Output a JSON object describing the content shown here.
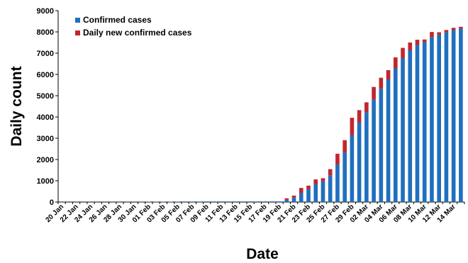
{
  "chart_data": {
    "type": "bar",
    "stacked": true,
    "xlabel": "Date",
    "ylabel": "Daily count",
    "ylim": [
      0,
      9000
    ],
    "yticks": [
      0,
      1000,
      2000,
      3000,
      4000,
      5000,
      6000,
      7000,
      8000,
      9000
    ],
    "grid": false,
    "legend_position": "top-left",
    "colors": {
      "confirmed": "#1f6fbf",
      "daily_new": "#c0272d"
    },
    "categories": [
      "20 Jan",
      "21 Jan",
      "22 Jan",
      "23 Jan",
      "24 Jan",
      "25 Jan",
      "26 Jan",
      "27 Jan",
      "28 Jan",
      "29 Jan",
      "30 Jan",
      "31 Jan",
      "01 Feb",
      "02 Feb",
      "03 Feb",
      "04 Feb",
      "05 Feb",
      "06 Feb",
      "07 Feb",
      "08 Feb",
      "09 Feb",
      "10 Feb",
      "11 Feb",
      "12 Feb",
      "13 Feb",
      "14 Feb",
      "15 Feb",
      "16 Feb",
      "17 Feb",
      "18 Feb",
      "19 Feb",
      "20 Feb",
      "21 Feb",
      "22 Feb",
      "23 Feb",
      "24 Feb",
      "25 Feb",
      "26 Feb",
      "27 Feb",
      "28 Feb",
      "29 Feb",
      "01 Mar",
      "02 Mar",
      "03 Mar",
      "04 Mar",
      "05 Mar",
      "06 Mar",
      "07 Mar",
      "08 Mar",
      "09 Mar",
      "10 Mar",
      "11 Mar",
      "12 Mar",
      "13 Mar",
      "14 Mar",
      "15 Mar"
    ],
    "tick_labels": [
      "20 Jan",
      "22 Jan",
      "24 Jan",
      "26 Jan",
      "28 Jan",
      "30 Jan",
      "01 Feb",
      "03 Feb",
      "05 Feb",
      "07 Feb",
      "09 Feb",
      "11 Feb",
      "13 Feb",
      "15 Feb",
      "17 Feb",
      "19 Feb",
      "21 Feb",
      "23 Feb",
      "25 Feb",
      "27 Feb",
      "29 Feb",
      "02 Mar",
      "04 Mar",
      "06 Mar",
      "08 Mar",
      "10 Mar",
      "12 Mar",
      "14 Mar"
    ],
    "series": [
      {
        "name": "Confirmed cases",
        "values": [
          1,
          1,
          1,
          1,
          1,
          2,
          3,
          4,
          4,
          4,
          4,
          11,
          12,
          15,
          15,
          16,
          18,
          23,
          24,
          24,
          27,
          27,
          28,
          28,
          28,
          28,
          28,
          29,
          30,
          31,
          31,
          104,
          204,
          433,
          602,
          833,
          977,
          1261,
          1766,
          2337,
          3150,
          3736,
          4212,
          4812,
          5328,
          5766,
          6284,
          6767,
          7134,
          7382,
          7513,
          7755,
          7869,
          7979,
          8086,
          8162
        ],
        "key": "confirmed"
      },
      {
        "name": "Daily new confirmed cases",
        "values": [
          0,
          0,
          0,
          0,
          0,
          0,
          1,
          1,
          0,
          0,
          0,
          7,
          1,
          3,
          0,
          1,
          2,
          5,
          1,
          0,
          3,
          0,
          0,
          0,
          0,
          0,
          0,
          1,
          1,
          1,
          0,
          73,
          100,
          229,
          169,
          231,
          144,
          284,
          505,
          571,
          813,
          586,
          476,
          600,
          516,
          438,
          518,
          483,
          367,
          248,
          131,
          242,
          114,
          110,
          107,
          76
        ],
        "key": "daily_new"
      }
    ]
  }
}
